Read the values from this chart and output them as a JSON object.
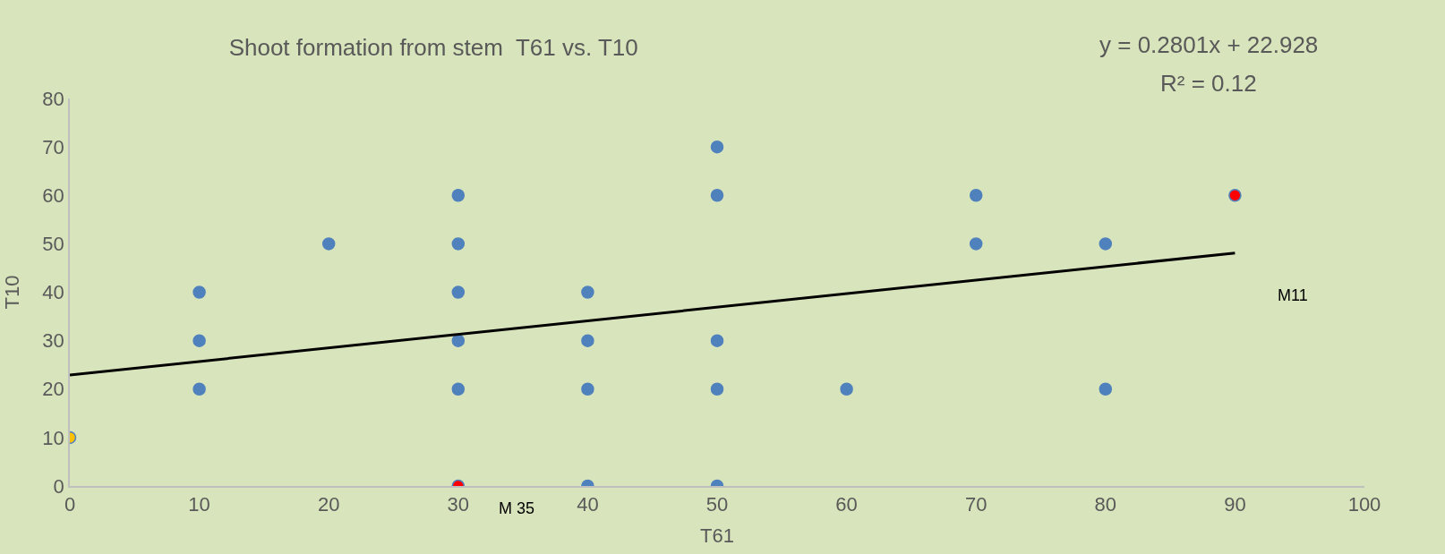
{
  "chart_data": {
    "type": "scatter",
    "title": "Shoot formation from stem  T61 vs. T10",
    "xlabel": "T61",
    "ylabel": "T10",
    "xlim": [
      0,
      100
    ],
    "xticks": [
      0,
      10,
      20,
      30,
      40,
      50,
      60,
      70,
      80,
      90,
      100
    ],
    "ylim": [
      0,
      80
    ],
    "yticks": [
      0,
      10,
      20,
      30,
      40,
      50,
      60,
      70,
      80
    ],
    "grid": false,
    "marker": "circle",
    "series": [
      {
        "color": "#4f81bd",
        "x": [
          10,
          10,
          10,
          20,
          30,
          30,
          30,
          30,
          30,
          40,
          40,
          40,
          40,
          50,
          50,
          50,
          50,
          50,
          60,
          70,
          70,
          80,
          80,
          30,
          90,
          0
        ],
        "values": [
          40,
          30,
          20,
          50,
          60,
          50,
          40,
          30,
          20,
          40,
          30,
          20,
          0,
          70,
          60,
          30,
          20,
          0,
          20,
          60,
          50,
          50,
          20,
          0,
          60,
          10
        ],
        "colors": [
          "#4f81bd",
          "#4f81bd",
          "#4f81bd",
          "#4f81bd",
          "#4f81bd",
          "#4f81bd",
          "#4f81bd",
          "#4f81bd",
          "#4f81bd",
          "#4f81bd",
          "#4f81bd",
          "#4f81bd",
          "#4f81bd",
          "#4f81bd",
          "#4f81bd",
          "#4f81bd",
          "#4f81bd",
          "#4f81bd",
          "#4f81bd",
          "#4f81bd",
          "#4f81bd",
          "#4f81bd",
          "#4f81bd",
          "#ff0000",
          "#ff0000",
          "#ffc000"
        ]
      },
      {
        "type": "line",
        "color": "#000000",
        "x": [
          0,
          90
        ],
        "values": [
          22.9,
          48.1
        ],
        "line_style": "solid",
        "marker": "none"
      }
    ],
    "annotations": [
      "y = 0.2801x + 22.928",
      "R² = 0.12",
      "M11",
      "M 35"
    ]
  }
}
